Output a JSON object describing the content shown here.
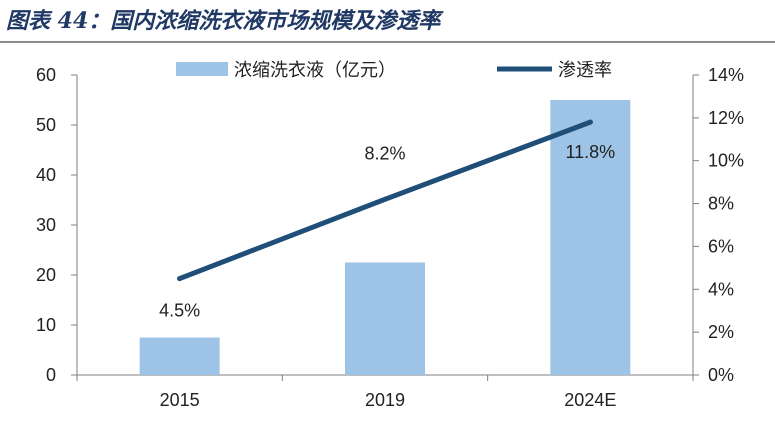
{
  "figure_title": "图表 44：国内浓缩洗衣液市场规模及渗透率",
  "chart_data": {
    "type": "bar",
    "categories": [
      "2015",
      "2019",
      "2024E"
    ],
    "series": [
      {
        "name": "浓缩洗衣液（亿元）",
        "type": "bar",
        "axis": "left",
        "values": [
          7.5,
          22.5,
          55.0
        ],
        "color": "#9dc3e6"
      },
      {
        "name": "渗透率",
        "type": "line",
        "axis": "right",
        "values": [
          4.5,
          8.2,
          11.8
        ],
        "labels": [
          "4.5%",
          "8.2%",
          "11.8%"
        ],
        "color": "#1f4e79"
      }
    ],
    "y_left": {
      "range": [
        0,
        60
      ],
      "ticks": [
        "0",
        "10",
        "20",
        "30",
        "40",
        "50",
        "60"
      ]
    },
    "y_right": {
      "range": [
        0,
        14
      ],
      "ticks": [
        "0%",
        "2%",
        "4%",
        "6%",
        "8%",
        "10%",
        "12%",
        "14%"
      ]
    },
    "grid": false,
    "legend_position": "top"
  }
}
